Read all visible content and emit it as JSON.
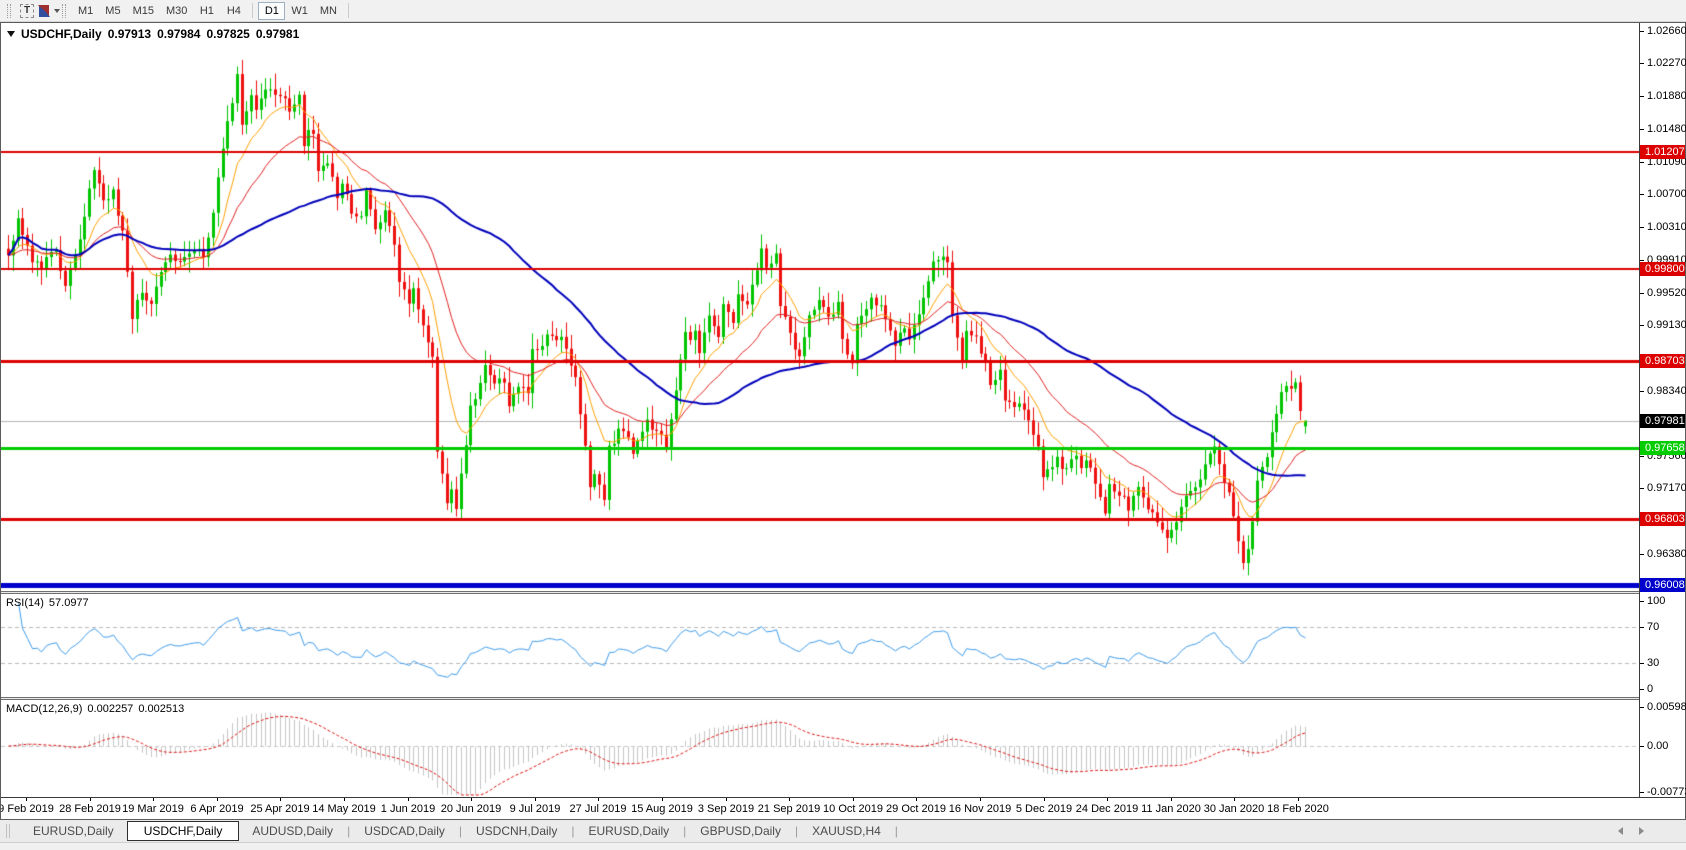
{
  "toolbar": {
    "text_tool_label": "T",
    "timeframes": [
      "M1",
      "M5",
      "M15",
      "M30",
      "H1",
      "H4",
      "D1",
      "W1",
      "MN"
    ],
    "active_timeframe": "D1"
  },
  "chart": {
    "title_symbol": "USDCHF,Daily",
    "ohlc": {
      "open": "0.97913",
      "high": "0.97984",
      "low": "0.97825",
      "close": "0.97981"
    }
  },
  "chart_data": {
    "type": "candlestick",
    "symbol": "USDCHF",
    "timeframe": "Daily",
    "bar_count": 273,
    "noise_seed": 42,
    "view": {
      "price_top": 1.02756,
      "price_bottom": 0.95936
    },
    "last_bar_ohlc": [
      0.97913,
      0.97984,
      0.97825,
      0.97981
    ],
    "close_keypoints": [
      [
        0,
        1.0
      ],
      [
        2,
        1.004
      ],
      [
        5,
        0.9995
      ],
      [
        7,
        0.9985
      ],
      [
        10,
        0.9998
      ],
      [
        12,
        0.9958
      ],
      [
        14,
        0.9995
      ],
      [
        16,
        1.0048
      ],
      [
        18,
        1.0093
      ],
      [
        20,
        1.0062
      ],
      [
        22,
        1.0075
      ],
      [
        24,
        1.002
      ],
      [
        26,
        0.9925
      ],
      [
        28,
        0.9952
      ],
      [
        30,
        0.9945
      ],
      [
        32,
        0.9972
      ],
      [
        34,
        0.9995
      ],
      [
        36,
        0.9988
      ],
      [
        39,
        1.0
      ],
      [
        41,
        0.9995
      ],
      [
        43,
        1.0052
      ],
      [
        45,
        1.013
      ],
      [
        47,
        1.0178
      ],
      [
        48,
        1.021
      ],
      [
        49,
        1.0155
      ],
      [
        51,
        1.0192
      ],
      [
        52,
        1.0178
      ],
      [
        54,
        1.0198
      ],
      [
        56,
        1.0183
      ],
      [
        57,
        1.0192
      ],
      [
        59,
        1.0168
      ],
      [
        61,
        1.0192
      ],
      [
        62,
        1.0133
      ],
      [
        64,
        1.0148
      ],
      [
        65,
        1.0092
      ],
      [
        67,
        1.0108
      ],
      [
        69,
        1.0068
      ],
      [
        70,
        1.0088
      ],
      [
        72,
        1.0052
      ],
      [
        74,
        1.0042
      ],
      [
        75,
        1.0072
      ],
      [
        77,
        1.0032
      ],
      [
        79,
        1.0048
      ],
      [
        81,
        1.0005
      ],
      [
        82,
        0.9962
      ],
      [
        84,
        0.994
      ],
      [
        85,
        0.9962
      ],
      [
        87,
        0.9912
      ],
      [
        89,
        0.9868
      ],
      [
        90,
        0.9762
      ],
      [
        92,
        0.97
      ],
      [
        93,
        0.9722
      ],
      [
        94,
        0.9698
      ],
      [
        96,
        0.9762
      ],
      [
        97,
        0.9812
      ],
      [
        99,
        0.9845
      ],
      [
        100,
        0.9868
      ],
      [
        102,
        0.9838
      ],
      [
        104,
        0.9848
      ],
      [
        105,
        0.9818
      ],
      [
        107,
        0.9842
      ],
      [
        109,
        0.9838
      ],
      [
        110,
        0.9882
      ],
      [
        112,
        0.9888
      ],
      [
        113,
        0.9905
      ],
      [
        115,
        0.9892
      ],
      [
        116,
        0.9898
      ],
      [
        118,
        0.9868
      ],
      [
        119,
        0.9852
      ],
      [
        121,
        0.9762
      ],
      [
        122,
        0.9722
      ],
      [
        123,
        0.9728
      ],
      [
        125,
        0.9702
      ],
      [
        126,
        0.9762
      ],
      [
        128,
        0.9792
      ],
      [
        130,
        0.9778
      ],
      [
        131,
        0.9752
      ],
      [
        133,
        0.9782
      ],
      [
        134,
        0.9795
      ],
      [
        136,
        0.9785
      ],
      [
        138,
        0.9772
      ],
      [
        139,
        0.9802
      ],
      [
        141,
        0.9868
      ],
      [
        142,
        0.9898
      ],
      [
        144,
        0.9905
      ],
      [
        145,
        0.9882
      ],
      [
        147,
        0.9922
      ],
      [
        149,
        0.9902
      ],
      [
        150,
        0.9935
      ],
      [
        152,
        0.9922
      ],
      [
        153,
        0.9945
      ],
      [
        155,
        0.9932
      ],
      [
        156,
        0.9958
      ],
      [
        158,
        0.9998
      ],
      [
        159,
        0.9975
      ],
      [
        161,
        0.9995
      ],
      [
        162,
        0.9942
      ],
      [
        164,
        0.9902
      ],
      [
        166,
        0.9872
      ],
      [
        167,
        0.9905
      ],
      [
        169,
        0.9932
      ],
      [
        170,
        0.9945
      ],
      [
        172,
        0.9922
      ],
      [
        174,
        0.9942
      ],
      [
        175,
        0.9895
      ],
      [
        177,
        0.9872
      ],
      [
        178,
        0.992
      ],
      [
        180,
        0.9935
      ],
      [
        181,
        0.9945
      ],
      [
        183,
        0.993
      ],
      [
        185,
        0.9905
      ],
      [
        186,
        0.989
      ],
      [
        188,
        0.9912
      ],
      [
        189,
        0.989
      ],
      [
        191,
        0.9925
      ],
      [
        193,
        0.9962
      ],
      [
        194,
        0.9988
      ],
      [
        196,
        1.0
      ],
      [
        197,
        0.9992
      ],
      [
        198,
        0.993
      ],
      [
        200,
        0.987
      ],
      [
        201,
        0.9902
      ],
      [
        203,
        0.9895
      ],
      [
        205,
        0.9868
      ],
      [
        206,
        0.9842
      ],
      [
        208,
        0.9856
      ],
      [
        209,
        0.9822
      ],
      [
        211,
        0.9812
      ],
      [
        212,
        0.9822
      ],
      [
        214,
        0.9792
      ],
      [
        216,
        0.9762
      ],
      [
        217,
        0.9735
      ],
      [
        219,
        0.9742
      ],
      [
        220,
        0.9752
      ],
      [
        222,
        0.9742
      ],
      [
        223,
        0.9758
      ],
      [
        225,
        0.9745
      ],
      [
        226,
        0.9752
      ],
      [
        227,
        0.9735
      ],
      [
        229,
        0.9705
      ],
      [
        230,
        0.9692
      ],
      [
        231,
        0.9722
      ],
      [
        233,
        0.9702
      ],
      [
        234,
        0.9712
      ],
      [
        235,
        0.9695
      ],
      [
        237,
        0.9712
      ],
      [
        238,
        0.9702
      ],
      [
        240,
        0.9692
      ],
      [
        241,
        0.9672
      ],
      [
        243,
        0.9652
      ],
      [
        244,
        0.9662
      ],
      [
        245,
        0.9682
      ],
      [
        247,
        0.9702
      ],
      [
        248,
        0.9712
      ],
      [
        250,
        0.9722
      ],
      [
        251,
        0.9742
      ],
      [
        253,
        0.9768
      ],
      [
        254,
        0.9742
      ],
      [
        256,
        0.9712
      ],
      [
        257,
        0.9682
      ],
      [
        259,
        0.9632
      ],
      [
        260,
        0.9645
      ],
      [
        261,
        0.9682
      ],
      [
        262,
        0.9722
      ],
      [
        264,
        0.9758
      ],
      [
        265,
        0.9788
      ],
      [
        266,
        0.9812
      ],
      [
        267,
        0.9828
      ],
      [
        269,
        0.9838
      ],
      [
        270,
        0.9845
      ],
      [
        271,
        0.9815
      ],
      [
        272,
        0.9798
      ]
    ],
    "horizontal_lines": [
      {
        "price": 1.01207,
        "color": "#dd0000",
        "width": 2
      },
      {
        "price": 0.998,
        "color": "#dd0000",
        "width": 2
      },
      {
        "price": 0.98703,
        "color": "#dd0000",
        "width": 3
      },
      {
        "price": 0.96803,
        "color": "#dd0000",
        "width": 3
      },
      {
        "price": 0.97658,
        "color": "#00cc00",
        "width": 3
      },
      {
        "price": 0.96008,
        "color": "#0000cc",
        "width": 5
      }
    ],
    "current_price_line": {
      "price": 0.97981,
      "color": "#b4b4b4",
      "width": 1
    },
    "moving_averages": [
      {
        "period": 10,
        "method": "ema",
        "color": "#ffa000",
        "width": 1
      },
      {
        "period": 24,
        "method": "ema",
        "color": "#e02020",
        "width": 1
      },
      {
        "period": 60,
        "method": "sma",
        "color": "#0000bb",
        "width": 2
      }
    ],
    "colors": {
      "up_candle": "#00c400",
      "down_candle": "#ee1111"
    },
    "price_axis": {
      "ticks": [
        "1.02660",
        "1.02270",
        "1.01880",
        "1.01480",
        "1.01090",
        "1.00700",
        "1.00310",
        "0.99910",
        "0.99520",
        "0.99130",
        "0.98340",
        "0.97560",
        "0.97170",
        "0.96380"
      ]
    },
    "x_ticks": [
      "9 Feb 2019",
      "28 Feb 2019",
      "19 Mar 2019",
      "6 Apr 2019",
      "25 Apr 2019",
      "14 May 2019",
      "1 Jun 2019",
      "20 Jun 2019",
      "9 Jul 2019",
      "27 Jul 2019",
      "15 Aug 2019",
      "3 Sep 2019",
      "21 Sep 2019",
      "10 Oct 2019",
      "29 Oct 2019",
      "16 Nov 2019",
      "5 Dec 2019",
      "24 Dec 2019",
      "11 Jan 2020",
      "30 Jan 2020",
      "18 Feb 2020"
    ],
    "rsi": {
      "label": "RSI(14)",
      "value": "57.0977",
      "period": 14,
      "levels": [
        70,
        30
      ],
      "scale_ticks": [
        "100",
        "70",
        "30",
        "0"
      ],
      "color": "#3e9be9"
    },
    "macd": {
      "label": "MACD(12,26,9)",
      "main": "0.002257",
      "signal": "0.002513",
      "scale_ticks": [
        "0.005986",
        "0.00",
        "-0.007737"
      ],
      "histogram_color": "#c6c6c6",
      "signal_color": "#dd1111"
    }
  },
  "price_tags": [
    {
      "label": "1.01207",
      "value": 1.01207,
      "bg": "#dd0000",
      "fg": "#ffffff"
    },
    {
      "label": "0.99800",
      "value": 0.998,
      "bg": "#dd0000",
      "fg": "#ffffff"
    },
    {
      "label": "0.98703",
      "value": 0.98703,
      "bg": "#dd0000",
      "fg": "#ffffff"
    },
    {
      "label": "0.97981",
      "value": 0.97981,
      "bg": "#000000",
      "fg": "#ffffff"
    },
    {
      "label": "0.97658",
      "value": 0.97658,
      "bg": "#00cc00",
      "fg": "#ffffff"
    },
    {
      "label": "0.96803",
      "value": 0.96803,
      "bg": "#dd0000",
      "fg": "#ffffff"
    },
    {
      "label": "0.96008",
      "value": 0.96008,
      "bg": "#0000cc",
      "fg": "#ffffff"
    }
  ],
  "tabs": {
    "items": [
      "EURUSD,Daily",
      "USDCHF,Daily",
      "AUDUSD,Daily",
      "USDCAD,Daily",
      "USDCNH,Daily",
      "EURUSD,Daily",
      "GBPUSD,Daily",
      "XAUUSD,H4"
    ],
    "active_index": 1
  }
}
